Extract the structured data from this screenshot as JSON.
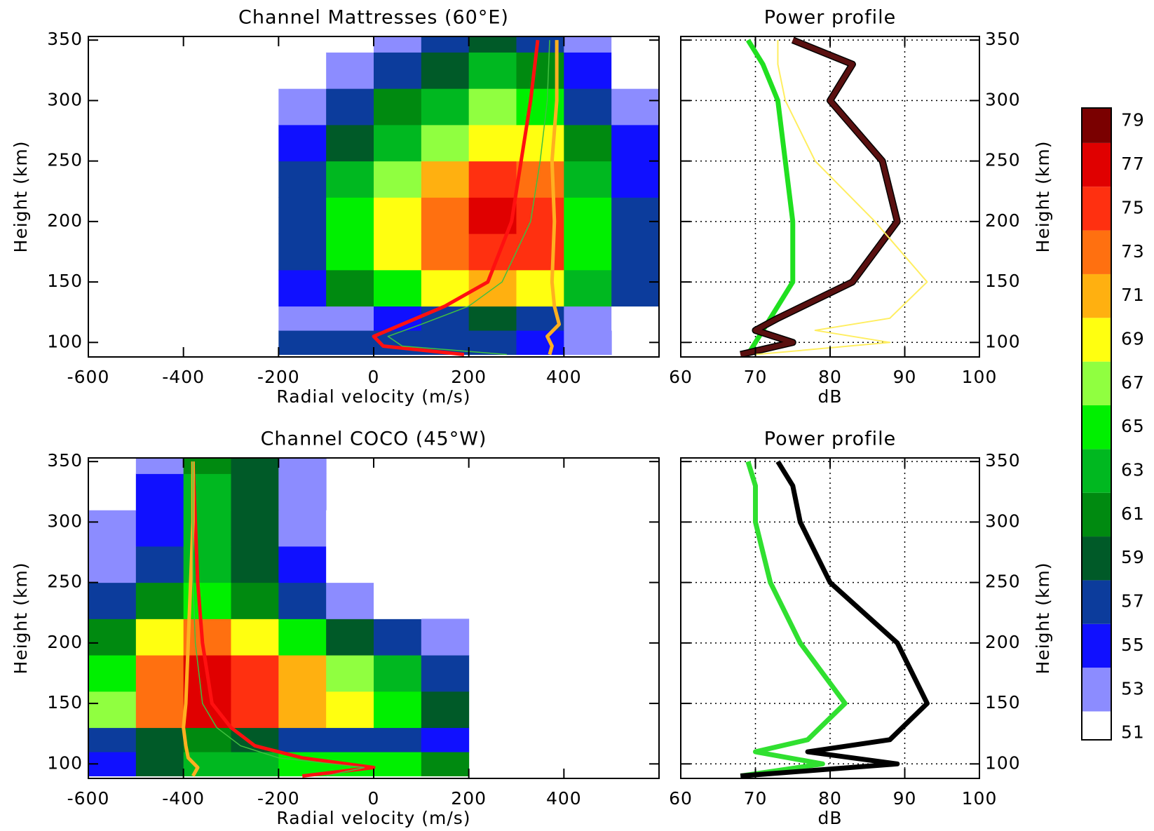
{
  "chart_data": [
    {
      "type": "heatmap",
      "title": "Channel Mattresses (60°E)",
      "xlabel": "Radial velocity (m/s)",
      "ylabel": "Height (km)",
      "xlim": [
        -600,
        600
      ],
      "ylim": [
        88,
        353
      ],
      "xticks": [
        -600,
        -400,
        -200,
        0,
        200,
        400
      ],
      "yticks": [
        100,
        150,
        200,
        250,
        300,
        350
      ],
      "x_edges": [
        -600,
        -500,
        -400,
        -300,
        -200,
        -100,
        0,
        100,
        200,
        300,
        400,
        500,
        600
      ],
      "y_edges": [
        90,
        110,
        130,
        160,
        190,
        220,
        250,
        280,
        310,
        340,
        360
      ],
      "z": [
        [
          null,
          null,
          null,
          null,
          57,
          58,
          58,
          57,
          57,
          55,
          53,
          null
        ],
        [
          null,
          null,
          null,
          null,
          53,
          54,
          56,
          58,
          60,
          58,
          54,
          52
        ],
        [
          null,
          null,
          null,
          null,
          56,
          62,
          66,
          69,
          72,
          70,
          64,
          58
        ],
        [
          null,
          null,
          null,
          null,
          58,
          66,
          70,
          73,
          76,
          75,
          66,
          58
        ],
        [
          null,
          null,
          null,
          null,
          58,
          66,
          70,
          74,
          78,
          76,
          66,
          57
        ],
        [
          null,
          null,
          null,
          null,
          57,
          63,
          67,
          71,
          75,
          73,
          64,
          56
        ],
        [
          null,
          null,
          null,
          null,
          55,
          60,
          64,
          67,
          70,
          69,
          61,
          55
        ],
        [
          null,
          null,
          null,
          null,
          53,
          57,
          61,
          64,
          67,
          65,
          58,
          53
        ],
        [
          null,
          null,
          null,
          null,
          52,
          54,
          57,
          60,
          63,
          61,
          55,
          52
        ],
        [
          null,
          null,
          null,
          null,
          null,
          52,
          54,
          57,
          60,
          58,
          54,
          52
        ]
      ],
      "series": [
        {
          "color": "#ff1010",
          "x": [
            190,
            20,
            0,
            60,
            150,
            240,
            290,
            310,
            330,
            345
          ],
          "y": [
            90,
            97,
            105,
            115,
            130,
            150,
            200,
            250,
            300,
            350
          ]
        },
        {
          "color": "#ffb020",
          "x": [
            370,
            375,
            365,
            390,
            380,
            375,
            380,
            375,
            385,
            385
          ],
          "y": [
            90,
            97,
            105,
            115,
            130,
            150,
            200,
            250,
            300,
            350
          ]
        },
        {
          "color": "#40c040",
          "x": [
            280,
            60,
            30,
            100,
            200,
            270,
            330,
            350,
            365,
            370
          ],
          "y": [
            90,
            97,
            105,
            115,
            130,
            150,
            200,
            250,
            300,
            350
          ]
        }
      ]
    },
    {
      "type": "profile",
      "title": "Power profile",
      "xlabel": "dB",
      "ylabel": "Height (km)",
      "grid": true,
      "xlim": [
        60,
        100
      ],
      "ylim": [
        88,
        353
      ],
      "xticks": [
        60,
        70,
        80,
        90,
        100
      ],
      "yticks": [
        100,
        150,
        200,
        250,
        300,
        350
      ],
      "series": [
        {
          "color": "#20e020",
          "x": [
            69,
            70,
            71,
            72,
            75,
            75,
            74,
            73,
            71,
            69
          ],
          "y": [
            90,
            100,
            110,
            120,
            150,
            200,
            250,
            300,
            330,
            350
          ]
        },
        {
          "color": "#5a1010",
          "x": [
            68,
            75,
            70,
            73,
            83,
            89,
            87,
            80,
            83,
            75
          ],
          "y": [
            90,
            100,
            110,
            120,
            150,
            200,
            250,
            300,
            330,
            350
          ]
        },
        {
          "color": "#ffee60",
          "x": [
            70,
            88,
            78,
            88,
            93,
            86,
            78,
            74,
            73,
            73
          ],
          "y": [
            90,
            100,
            110,
            120,
            150,
            200,
            250,
            300,
            330,
            350
          ]
        }
      ]
    },
    {
      "type": "heatmap",
      "title": "Channel COCO (45°W)",
      "xlabel": "Radial velocity (m/s)",
      "ylabel": "Height (km)",
      "xlim": [
        -600,
        600
      ],
      "ylim": [
        88,
        353
      ],
      "xticks": [
        -600,
        -400,
        -200,
        0,
        200,
        400
      ],
      "yticks": [
        100,
        150,
        200,
        250,
        300,
        350
      ],
      "x_edges": [
        -600,
        -500,
        -400,
        -300,
        -200,
        -100,
        0,
        100,
        200,
        300,
        400,
        500,
        600
      ],
      "y_edges": [
        90,
        110,
        130,
        160,
        190,
        220,
        250,
        280,
        310,
        340,
        360
      ],
      "z": [
        [
          56,
          60,
          63,
          64,
          65,
          66,
          66,
          62,
          null,
          null,
          null,
          null
        ],
        [
          57,
          60,
          62,
          60,
          58,
          57,
          57,
          55,
          null,
          null,
          null,
          null
        ],
        [
          67,
          74,
          78,
          75,
          72,
          69,
          66,
          60,
          null,
          null,
          null,
          null
        ],
        [
          66,
          74,
          77,
          75,
          71,
          67,
          63,
          57,
          null,
          null,
          null,
          null
        ],
        [
          62,
          70,
          73,
          70,
          65,
          60,
          57,
          54,
          null,
          null,
          null,
          null
        ],
        [
          57,
          62,
          66,
          62,
          57,
          54,
          52,
          null,
          null,
          null,
          null,
          null
        ],
        [
          54,
          58,
          64,
          60,
          55,
          52,
          null,
          null,
          null,
          null,
          null,
          null
        ],
        [
          53,
          56,
          63,
          60,
          54,
          52,
          null,
          null,
          null,
          null,
          null,
          null
        ],
        [
          52,
          55,
          63,
          60,
          53,
          null,
          null,
          null,
          null,
          null,
          null,
          null
        ],
        [
          null,
          54,
          62,
          59,
          53,
          null,
          null,
          null,
          null,
          null,
          null,
          null
        ]
      ],
      "series": [
        {
          "color": "#ff1010",
          "x": [
            -150,
            0,
            -150,
            -250,
            -300,
            -340,
            -360,
            -370,
            -375,
            -380
          ],
          "y": [
            90,
            97,
            105,
            115,
            130,
            150,
            200,
            250,
            300,
            350
          ]
        },
        {
          "color": "#ffb020",
          "x": [
            -380,
            -370,
            -390,
            -395,
            -400,
            -395,
            -390,
            -385,
            -380,
            -380
          ],
          "y": [
            90,
            97,
            105,
            115,
            130,
            150,
            200,
            250,
            300,
            350
          ]
        },
        {
          "color": "#40c040",
          "x": [
            -100,
            -20,
            -200,
            -280,
            -330,
            -360,
            -375,
            -380,
            -380,
            -380
          ],
          "y": [
            90,
            97,
            105,
            115,
            130,
            150,
            200,
            250,
            300,
            350
          ]
        }
      ]
    },
    {
      "type": "profile",
      "title": "Power profile",
      "xlabel": "dB",
      "ylabel": "Height (km)",
      "grid": true,
      "xlim": [
        60,
        100
      ],
      "ylim": [
        88,
        353
      ],
      "xticks": [
        60,
        70,
        80,
        90,
        100
      ],
      "yticks": [
        100,
        150,
        200,
        250,
        300,
        350
      ],
      "series": [
        {
          "color": "#30e030",
          "x": [
            68,
            79,
            70,
            77,
            82,
            76,
            72,
            70,
            70,
            69
          ],
          "y": [
            90,
            100,
            110,
            120,
            150,
            200,
            250,
            300,
            330,
            350
          ]
        },
        {
          "color": "#000000",
          "x": [
            68,
            89,
            77,
            88,
            93,
            89,
            80,
            76,
            75,
            73
          ],
          "y": [
            90,
            100,
            110,
            120,
            150,
            200,
            250,
            300,
            330,
            350
          ]
        }
      ]
    },
    {
      "type": "colorbar",
      "lim": [
        50.7,
        79.6
      ],
      "ticks": [
        51,
        53,
        55,
        57,
        59,
        61,
        63,
        65,
        67,
        69,
        71,
        73,
        75,
        77,
        79
      ],
      "colors": [
        "#ffffff",
        "#8c8cff",
        "#1010ff",
        "#0c3c9c",
        "#005a28",
        "#008a10",
        "#00b820",
        "#00f000",
        "#90ff40",
        "#ffff10",
        "#ffb010",
        "#ff7010",
        "#ff3010",
        "#e00000",
        "#7a0000"
      ]
    }
  ]
}
